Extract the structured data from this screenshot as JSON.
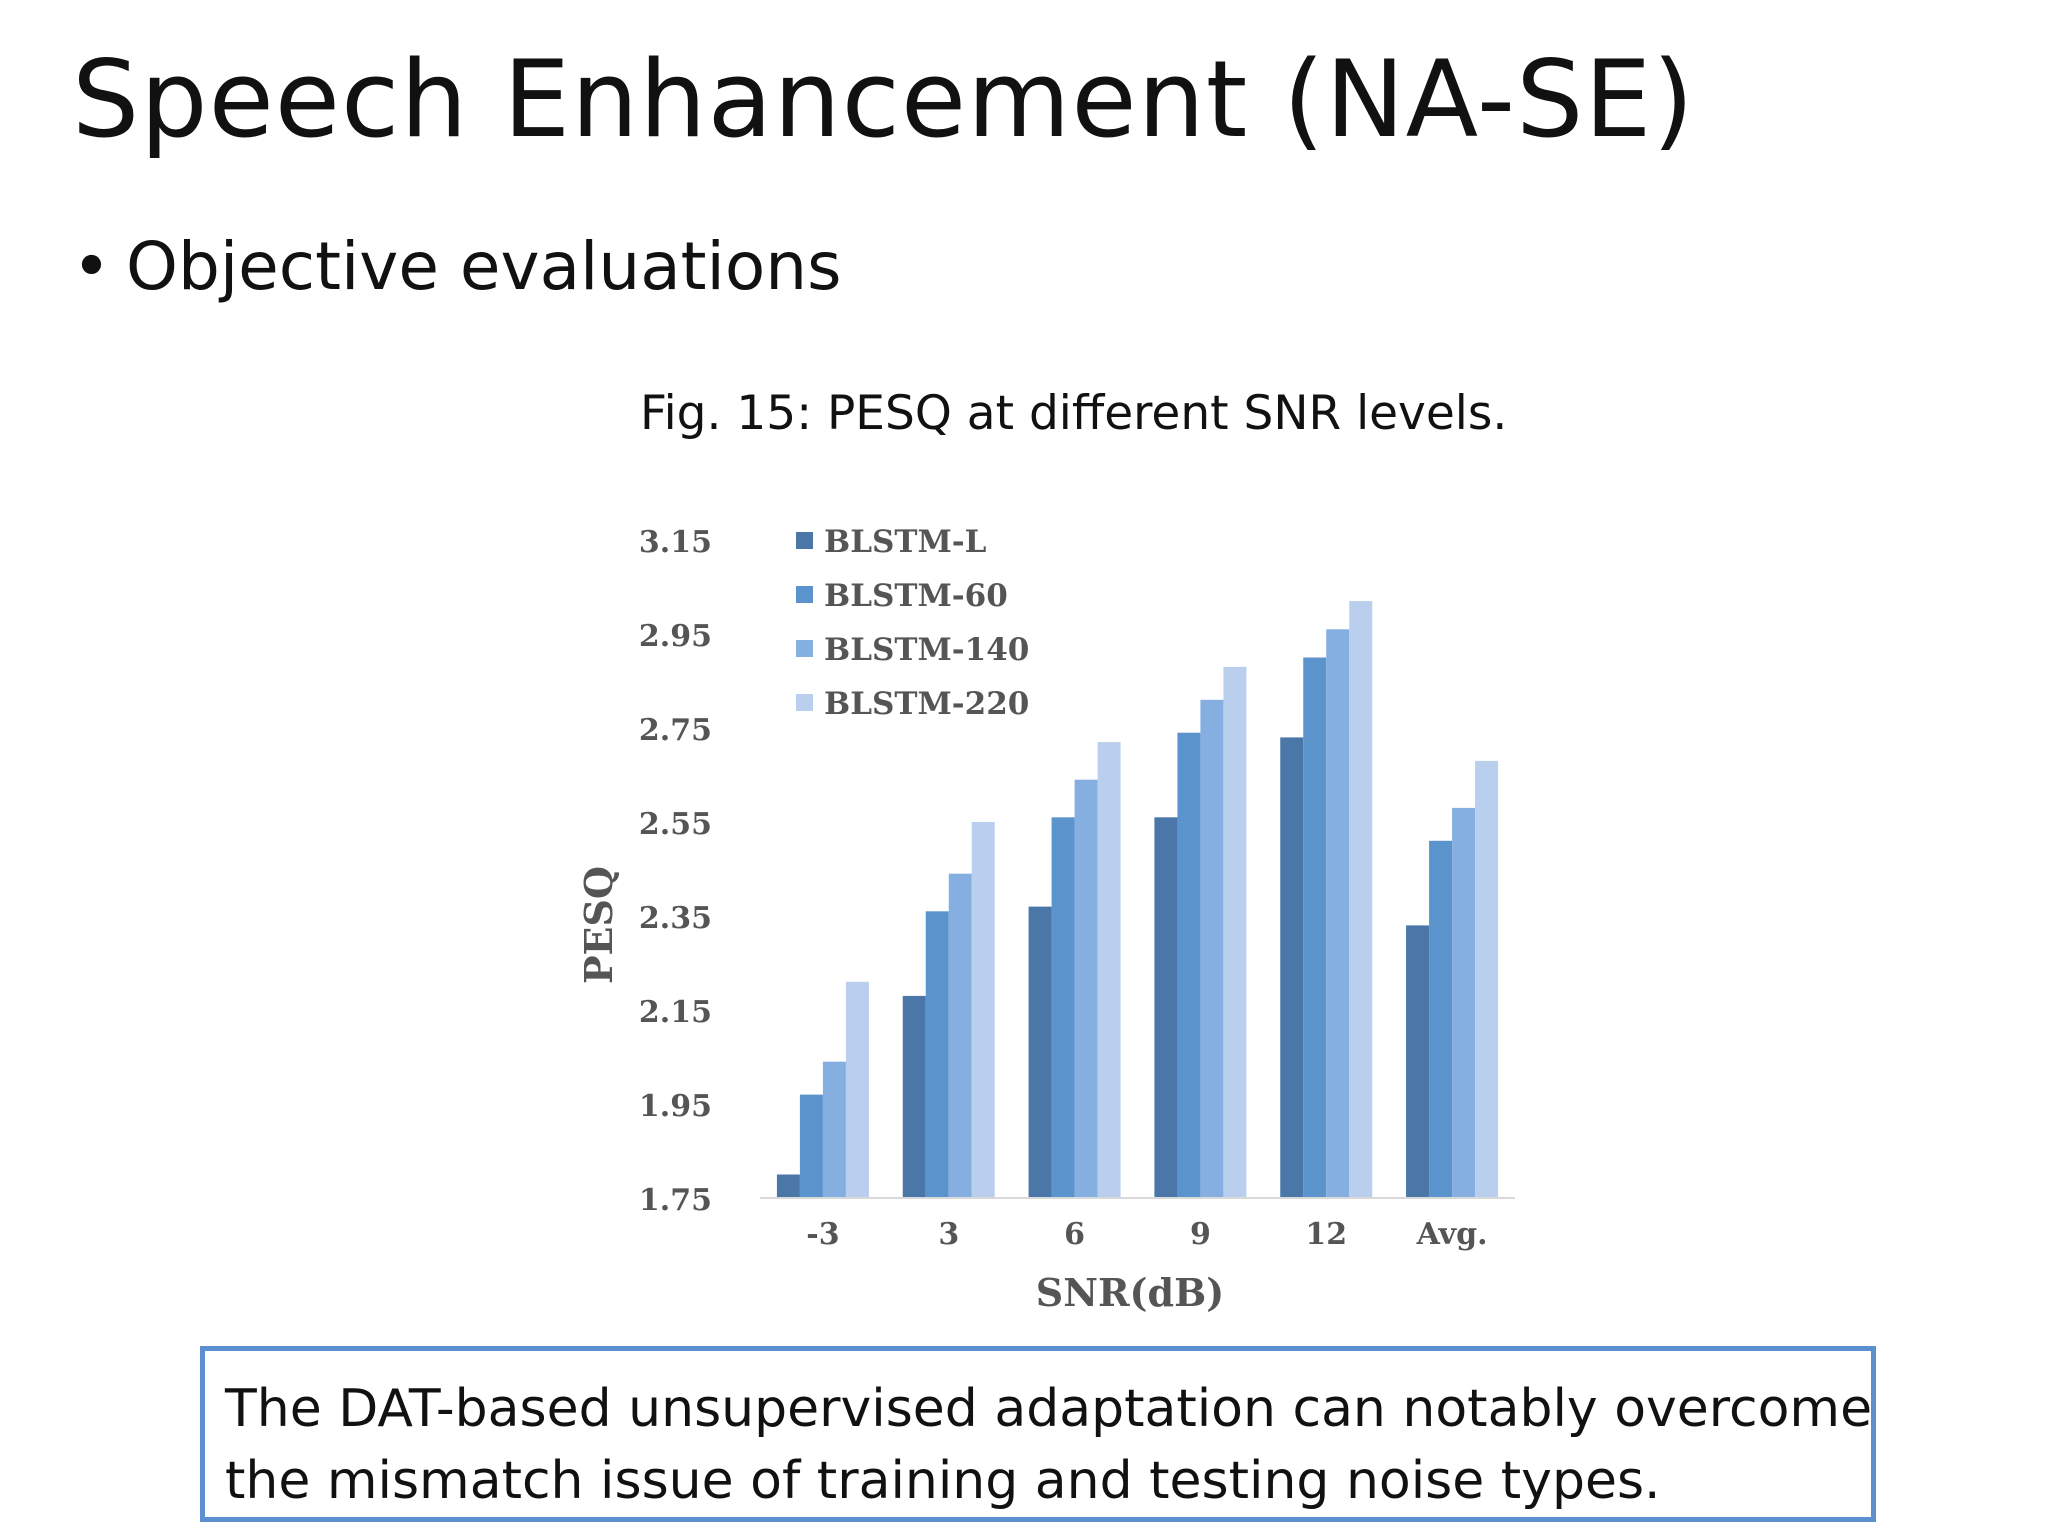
{
  "slide": {
    "title": "Speech Enhancement (NA-SE)",
    "bullet": "Objective evaluations",
    "caption": "Fig. 15: PESQ at different SNR levels.",
    "note_line1": "The DAT-based unsupervised adaptation can notably overcome",
    "note_line2": "the mismatch issue of training and testing noise types."
  },
  "chart_data": {
    "type": "bar",
    "title": "",
    "xlabel": "SNR(dB)",
    "ylabel": "PESQ",
    "categories": [
      "-3",
      "3",
      "6",
      "9",
      "12",
      "Avg."
    ],
    "ylim": [
      1.75,
      3.15
    ],
    "yticks": [
      "3.15",
      "2.95",
      "2.75",
      "2.55",
      "2.35",
      "2.15",
      "1.95",
      "1.75"
    ],
    "legend_position": "top-left",
    "grid": false,
    "series": [
      {
        "name": "BLSTM-L",
        "color": "#4a76a8",
        "values": [
          1.8,
          2.18,
          2.37,
          2.56,
          2.73,
          2.33
        ]
      },
      {
        "name": "BLSTM-60",
        "color": "#5b93cc",
        "values": [
          1.97,
          2.36,
          2.56,
          2.74,
          2.9,
          2.51
        ]
      },
      {
        "name": "BLSTM-140",
        "color": "#85afe0",
        "values": [
          2.04,
          2.44,
          2.64,
          2.81,
          2.96,
          2.58
        ]
      },
      {
        "name": "BLSTM-220",
        "color": "#b9cfed",
        "values": [
          2.21,
          2.55,
          2.72,
          2.88,
          3.02,
          2.68
        ]
      }
    ]
  }
}
